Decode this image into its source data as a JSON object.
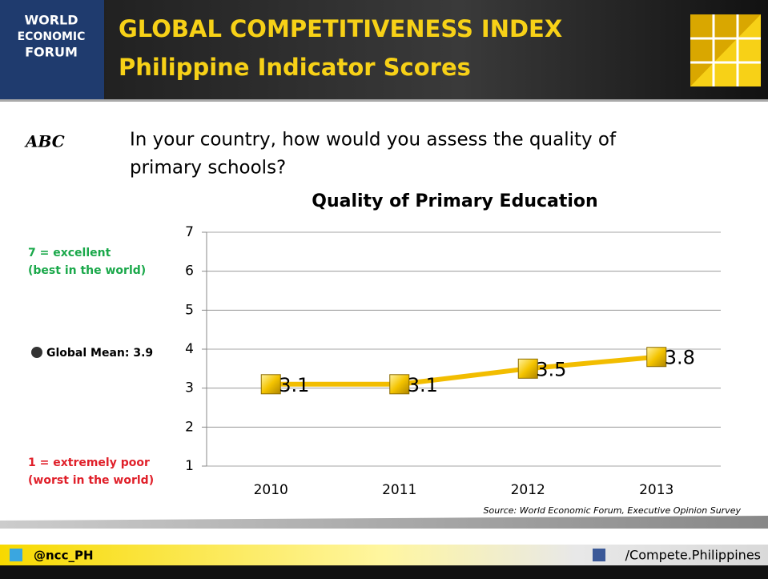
{
  "header": {
    "logo_lines": [
      "WORLD",
      "ECONOMIC",
      "FORUM"
    ],
    "title": "GLOBAL COMPETITIVENESS INDEX",
    "subtitle": "Philippine Indicator Scores"
  },
  "question_icon": "ABC",
  "question": [
    "In your country, how would you assess the quality of",
    "primary schools?"
  ],
  "scale_notes": {
    "top": [
      "7 = excellent",
      "(best in the world)"
    ],
    "mean": "Global Mean: 3.9",
    "bottom": [
      "1 = extremely poor",
      "(worst in the world)"
    ]
  },
  "chart_data": {
    "type": "line",
    "title": "Quality of Primary Education",
    "categories": [
      "2010",
      "2011",
      "2012",
      "2013"
    ],
    "values": [
      3.1,
      3.1,
      3.5,
      3.8
    ],
    "color": "#f2bd00",
    "ylim": [
      1,
      7
    ],
    "yticks": [
      1,
      2,
      3,
      4,
      5,
      6,
      7
    ],
    "grid": true,
    "source": "Source: World Economic Forum, Executive Opinion Survey"
  },
  "footer": {
    "twitter": "@ncc_PH",
    "facebook": "/Compete.Philippines"
  }
}
